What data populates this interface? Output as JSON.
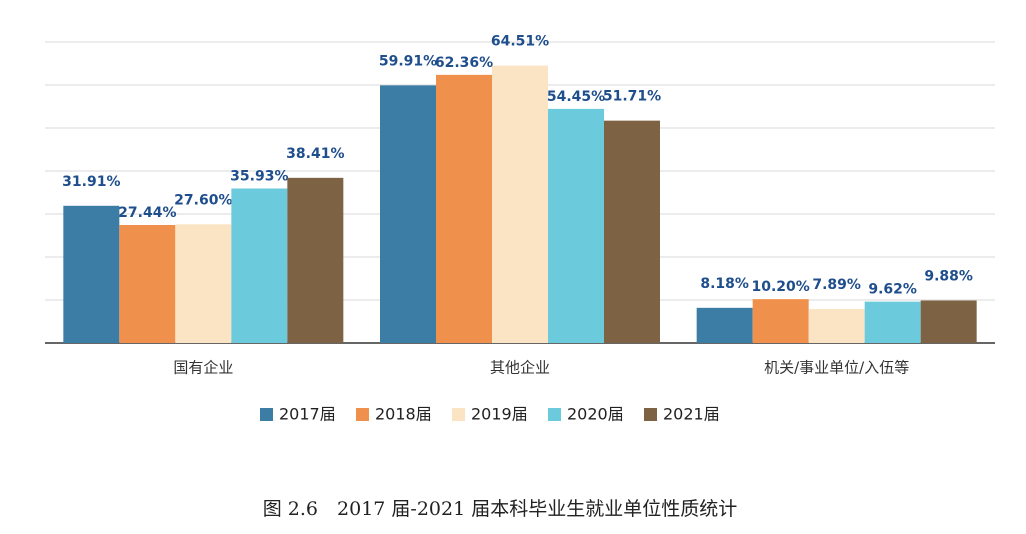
{
  "chart_data": {
    "type": "bar",
    "title": "图 2.6　2017 届-2021 届本科毕业生就业单位性质统计",
    "categories": [
      "国有企业",
      "其他企业",
      "机关/事业单位/入伍等"
    ],
    "series": [
      {
        "name": "2017届",
        "color": "#3b7da5",
        "values": [
          31.91,
          59.91,
          8.18
        ],
        "value_labels": [
          "31.91%",
          "59.91%",
          "8.18%"
        ]
      },
      {
        "name": "2018届",
        "color": "#f0904d",
        "values": [
          27.44,
          62.36,
          10.2
        ],
        "value_labels": [
          "27.44%",
          "62.36%",
          "10.20%"
        ]
      },
      {
        "name": "2019届",
        "color": "#fbe4c3",
        "values": [
          27.6,
          64.51,
          7.89
        ],
        "value_labels": [
          "27.60%",
          "64.51%",
          "7.89%"
        ]
      },
      {
        "name": "2020届",
        "color": "#6ccadd",
        "values": [
          35.93,
          54.45,
          9.62
        ],
        "value_labels": [
          "35.93%",
          "54.45%",
          "9.62%"
        ]
      },
      {
        "name": "2021届",
        "color": "#7e6244",
        "values": [
          38.41,
          51.71,
          9.88
        ],
        "value_labels": [
          "38.41%",
          "51.71%",
          "9.88%"
        ]
      }
    ],
    "ylim": [
      0,
      70
    ],
    "yticks": [
      0,
      10,
      20,
      30,
      40,
      50,
      60,
      70
    ],
    "grid": true
  }
}
